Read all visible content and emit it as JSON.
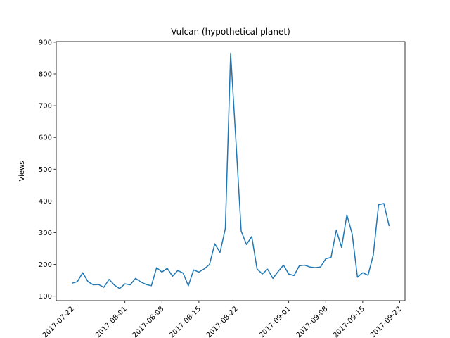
{
  "chart_data": {
    "type": "line",
    "title": "Vulcan (hypothetical planet)",
    "y_label": "Views",
    "x": [
      "2017-07-22",
      "2017-07-23",
      "2017-07-24",
      "2017-07-25",
      "2017-07-26",
      "2017-07-27",
      "2017-07-28",
      "2017-07-29",
      "2017-07-30",
      "2017-07-31",
      "2017-08-01",
      "2017-08-02",
      "2017-08-03",
      "2017-08-04",
      "2017-08-05",
      "2017-08-06",
      "2017-08-07",
      "2017-08-08",
      "2017-08-09",
      "2017-08-10",
      "2017-08-11",
      "2017-08-12",
      "2017-08-13",
      "2017-08-14",
      "2017-08-15",
      "2017-08-16",
      "2017-08-17",
      "2017-08-18",
      "2017-08-19",
      "2017-08-20",
      "2017-08-21",
      "2017-08-22",
      "2017-08-23",
      "2017-08-24",
      "2017-08-25",
      "2017-08-26",
      "2017-08-27",
      "2017-08-28",
      "2017-08-29",
      "2017-08-30",
      "2017-08-31",
      "2017-09-01",
      "2017-09-02",
      "2017-09-03",
      "2017-09-04",
      "2017-09-05",
      "2017-09-06",
      "2017-09-07",
      "2017-09-08",
      "2017-09-09",
      "2017-09-10",
      "2017-09-11",
      "2017-09-12",
      "2017-09-13",
      "2017-09-14",
      "2017-09-15",
      "2017-09-16",
      "2017-09-17",
      "2017-09-18",
      "2017-09-19",
      "2017-09-20"
    ],
    "series": [
      {
        "name": "Views",
        "color": "#1f77b4",
        "values": [
          141,
          146,
          174,
          146,
          136,
          137,
          128,
          153,
          135,
          124,
          139,
          136,
          156,
          145,
          137,
          133,
          190,
          176,
          188,
          163,
          181,
          173,
          133,
          183,
          176,
          186,
          200,
          265,
          238,
          313,
          865,
          590,
          305,
          263,
          288,
          186,
          170,
          185,
          156,
          178,
          198,
          170,
          165,
          196,
          198,
          192,
          190,
          192,
          218,
          222,
          308,
          254,
          356,
          296,
          160,
          174,
          166,
          230,
          388,
          392,
          321
        ]
      }
    ],
    "xlim": [
      "2017-07-19",
      "2017-09-23"
    ],
    "xticks": [
      "2017-07-22",
      "2017-08-01",
      "2017-08-08",
      "2017-08-15",
      "2017-08-22",
      "2017-09-01",
      "2017-09-08",
      "2017-09-15",
      "2017-09-22"
    ],
    "ylim": [
      86,
      902
    ],
    "yticks": [
      100,
      200,
      300,
      400,
      500,
      600,
      700,
      800,
      900
    ]
  }
}
